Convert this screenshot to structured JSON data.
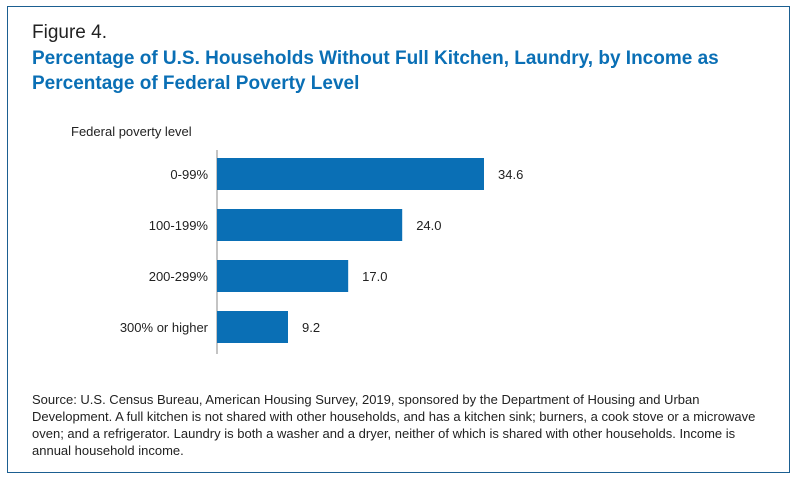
{
  "figure": {
    "label": "Figure 4.",
    "title": "Percentage of U.S. Households Without Full Kitchen, Laundry, by Income as Percentage of Federal Poverty Level",
    "source": "Source: U.S. Census Bureau, American Housing Survey, 2019, sponsored by the Department of Housing and Urban Development. A full kitchen is not shared with other households, and has a kitchen sink; burners, a cook stove or a microwave oven; and a refrigerator. Laundry is both a washer and a dryer, neither of which is shared with other households. Income is annual household income."
  },
  "colors": {
    "bar": "#0a6fb5",
    "title": "#0a6fb5",
    "frame": "#1b5f91",
    "text": "#222222"
  },
  "chart_data": {
    "type": "bar",
    "orientation": "horizontal",
    "title": "Percentage of U.S. Households Without Full Kitchen, Laundry, by Income as Percentage of Federal Poverty Level",
    "category_axis_label": "Federal poverty level",
    "categories": [
      "0-99%",
      "100-199%",
      "200-299%",
      "300% or higher"
    ],
    "values": [
      34.6,
      24.0,
      17.0,
      9.2
    ],
    "value_labels": [
      "34.6",
      "24.0",
      "17.0",
      "9.2"
    ],
    "xlim": [
      0,
      40
    ],
    "grid": false,
    "legend": "none"
  }
}
